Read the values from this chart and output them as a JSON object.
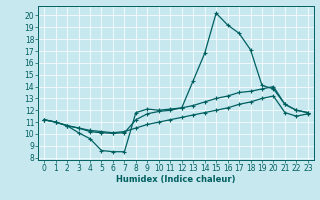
{
  "title": "",
  "xlabel": "Humidex (Indice chaleur)",
  "xlim": [
    -0.5,
    23.5
  ],
  "ylim": [
    7.8,
    20.8
  ],
  "xticks": [
    0,
    1,
    2,
    3,
    4,
    5,
    6,
    7,
    8,
    9,
    10,
    11,
    12,
    13,
    14,
    15,
    16,
    17,
    18,
    19,
    20,
    21,
    22,
    23
  ],
  "yticks": [
    8,
    9,
    10,
    11,
    12,
    13,
    14,
    15,
    16,
    17,
    18,
    19,
    20
  ],
  "bg_color": "#c8e8f0",
  "line_color": "#006060",
  "grid_color": "#ffffff",
  "curve1_y": [
    11.2,
    11.0,
    10.7,
    10.1,
    9.6,
    8.6,
    8.5,
    8.5,
    11.8,
    12.1,
    12.0,
    12.1,
    12.2,
    14.5,
    16.8,
    20.2,
    19.2,
    18.5,
    17.1,
    14.1,
    13.8,
    12.5,
    12.0,
    11.8
  ],
  "curve2_y": [
    11.2,
    11.0,
    10.7,
    10.5,
    10.2,
    10.1,
    10.05,
    10.1,
    11.2,
    11.7,
    11.9,
    12.0,
    12.2,
    12.4,
    12.7,
    13.0,
    13.2,
    13.5,
    13.6,
    13.8,
    14.0,
    12.5,
    12.0,
    11.8
  ],
  "curve3_y": [
    11.2,
    11.0,
    10.7,
    10.5,
    10.3,
    10.2,
    10.1,
    10.2,
    10.5,
    10.8,
    11.0,
    11.2,
    11.4,
    11.6,
    11.8,
    12.0,
    12.2,
    12.5,
    12.7,
    13.0,
    13.2,
    11.8,
    11.5,
    11.7
  ],
  "xlabel_fontsize": 6.0,
  "tick_fontsize": 5.5,
  "linewidth": 0.9,
  "markersize": 3.0
}
